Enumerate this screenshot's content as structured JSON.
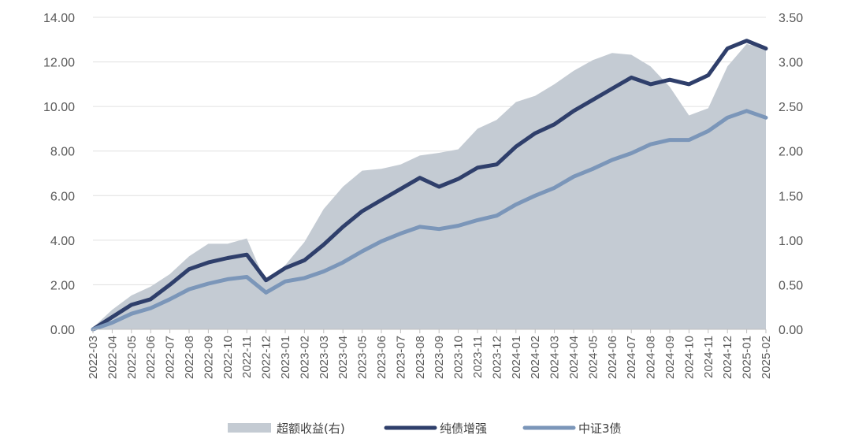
{
  "chart_data": {
    "type": "line",
    "x": [
      "2022-03",
      "2022-04",
      "2022-05",
      "2022-06",
      "2022-07",
      "2022-08",
      "2022-09",
      "2022-10",
      "2022-11",
      "2022-12",
      "2023-01",
      "2023-02",
      "2023-03",
      "2023-04",
      "2023-05",
      "2023-06",
      "2023-07",
      "2023-08",
      "2023-09",
      "2023-10",
      "2023-11",
      "2023-12",
      "2024-01",
      "2024-02",
      "2024-03",
      "2024-04",
      "2024-05",
      "2024-06",
      "2024-07",
      "2024-08",
      "2024-09",
      "2024-10",
      "2024-11",
      "2024-12",
      "2025-01",
      "2025-02"
    ],
    "y_left_ticks": [
      "0.00",
      "2.00",
      "4.00",
      "6.00",
      "8.00",
      "10.00",
      "12.00",
      "14.00"
    ],
    "y_right_ticks": [
      "0.00",
      "0.50",
      "1.00",
      "1.50",
      "2.00",
      "2.50",
      "3.00",
      "3.50"
    ],
    "y_left_range": [
      0,
      14
    ],
    "y_right_range": [
      0,
      3.5
    ],
    "grid": "horizontal",
    "legend_position": "bottom",
    "series": [
      {
        "name": "超额收益(右)",
        "kind": "area",
        "axis": "right",
        "color": "#c4cbd3",
        "values": [
          0.02,
          0.22,
          0.38,
          0.48,
          0.62,
          0.82,
          0.96,
          0.96,
          1.02,
          0.52,
          0.72,
          0.98,
          1.35,
          1.6,
          1.78,
          1.8,
          1.85,
          1.95,
          1.98,
          2.02,
          2.25,
          2.35,
          2.55,
          2.62,
          2.75,
          2.9,
          3.02,
          3.1,
          3.08,
          2.95,
          2.72,
          2.4,
          2.48,
          2.95,
          3.2,
          3.15
        ]
      },
      {
        "name": "纯债增强",
        "kind": "line",
        "axis": "left",
        "color": "#2f3f6b",
        "values": [
          0.0,
          0.55,
          1.1,
          1.35,
          2.0,
          2.7,
          3.0,
          3.2,
          3.35,
          2.2,
          2.75,
          3.1,
          3.8,
          4.6,
          5.3,
          5.8,
          6.3,
          6.8,
          6.4,
          6.75,
          7.25,
          7.4,
          8.2,
          8.8,
          9.2,
          9.8,
          10.3,
          10.8,
          11.3,
          11.0,
          11.2,
          11.0,
          11.4,
          12.6,
          12.95,
          12.6
        ]
      },
      {
        "name": "中证3债",
        "kind": "line",
        "axis": "left",
        "color": "#7b96b9",
        "values": [
          0.0,
          0.3,
          0.7,
          0.95,
          1.35,
          1.8,
          2.05,
          2.25,
          2.35,
          1.65,
          2.15,
          2.3,
          2.6,
          3.0,
          3.5,
          3.95,
          4.3,
          4.6,
          4.5,
          4.65,
          4.9,
          5.1,
          5.6,
          6.0,
          6.35,
          6.85,
          7.2,
          7.6,
          7.9,
          8.3,
          8.5,
          8.5,
          8.9,
          9.5,
          9.8,
          9.5
        ]
      }
    ]
  }
}
